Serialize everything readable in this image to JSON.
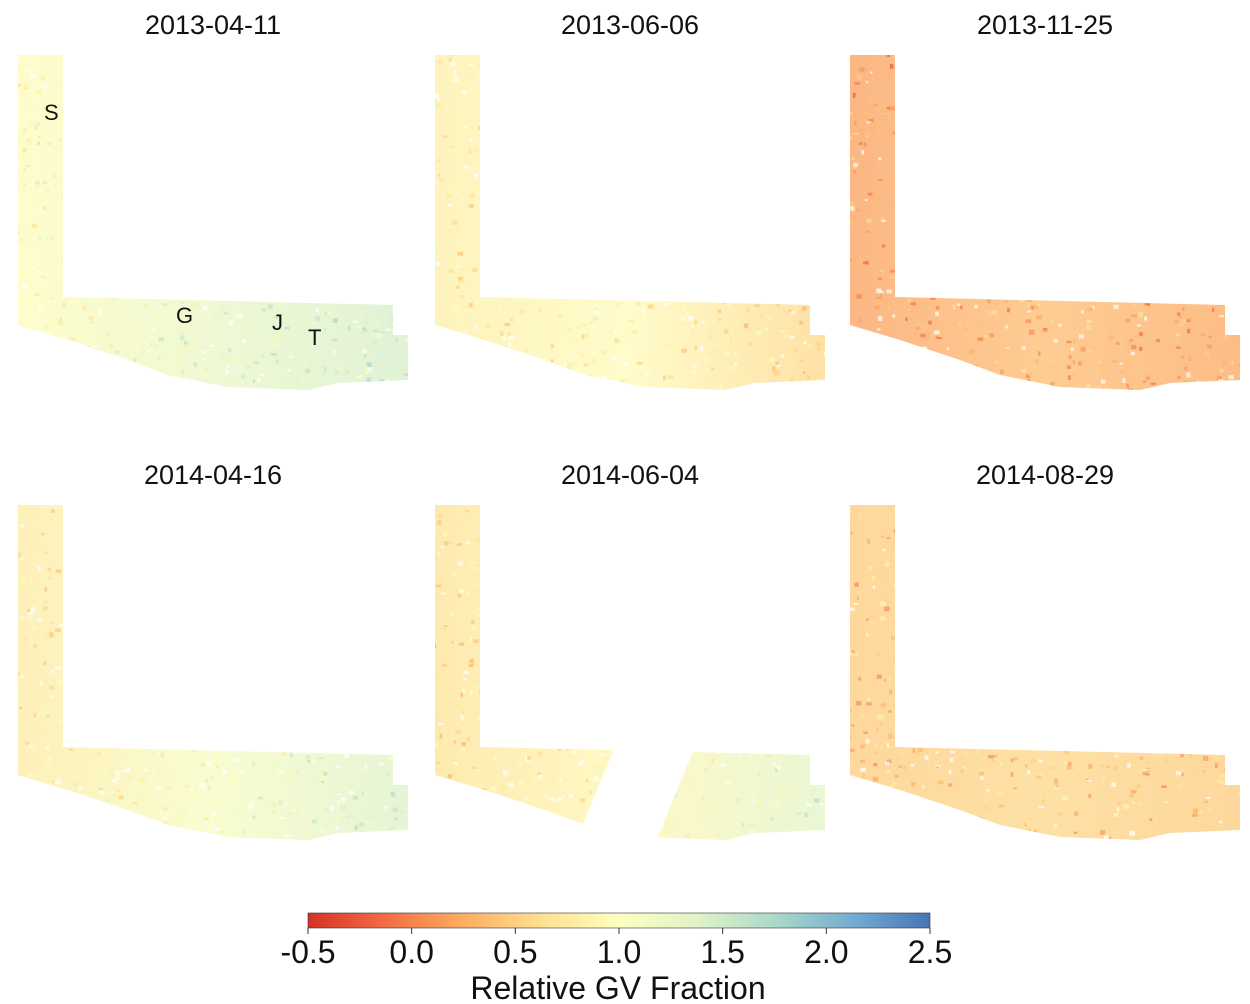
{
  "panels": [
    {
      "date": "2013-04-11",
      "tone": [
        0.95,
        1.25,
        1.45
      ],
      "labels": [
        "S",
        "G",
        "J",
        "T"
      ],
      "gap": false
    },
    {
      "date": "2013-06-06",
      "tone": [
        0.8,
        0.95,
        0.55
      ],
      "labels": [],
      "gap": false
    },
    {
      "date": "2013-11-25",
      "tone": [
        0.15,
        0.35,
        0.2
      ],
      "labels": [],
      "gap": false
    },
    {
      "date": "2014-04-16",
      "tone": [
        0.75,
        1.1,
        1.4
      ],
      "labels": [],
      "gap": false
    },
    {
      "date": "2014-06-04",
      "tone": [
        0.65,
        0.9,
        1.35
      ],
      "labels": [],
      "gap": true
    },
    {
      "date": "2014-08-29",
      "tone": [
        0.45,
        0.55,
        0.45
      ],
      "labels": [],
      "gap": false
    }
  ],
  "colorbar": {
    "title": "Relative GV Fraction",
    "range": [
      -0.5,
      2.5
    ],
    "ticks": [
      "-0.5",
      "0.0",
      "0.5",
      "1.0",
      "1.5",
      "2.0",
      "2.5"
    ],
    "colors": [
      "#d73027",
      "#f46d43",
      "#fdae61",
      "#fee090",
      "#ffffbf",
      "#e0f3c8",
      "#abd9c9",
      "#74add1",
      "#4575b4"
    ]
  }
}
